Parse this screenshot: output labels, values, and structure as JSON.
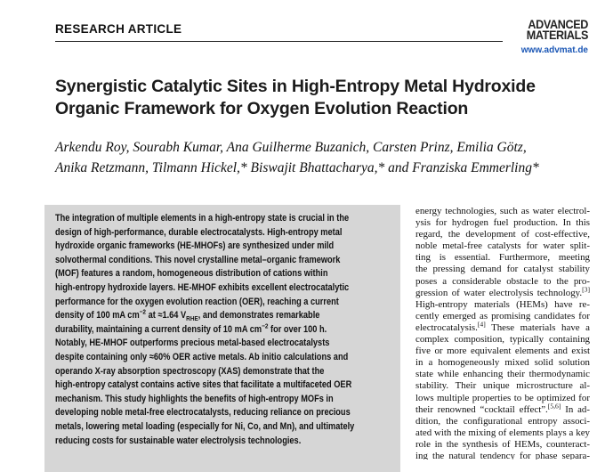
{
  "header": {
    "section": "RESEARCH ARTICLE",
    "journal_line1": "ADVANCED",
    "journal_line2": "MATERIALS",
    "url": "www.advmat.de"
  },
  "title": [
    "Synergistic Catalytic Sites in High-Entropy Metal Hydroxide",
    "Organic Framework for Oxygen Evolution Reaction"
  ],
  "authors": [
    "Arkendu Roy, Sourabh Kumar, Ana Guilherme Buzanich, Carsten Prinz, Emilia Götz,",
    "Anika Retzmann, Tilmann Hickel,* Biswajit Bhattacharya,* and Franziska Emmerling*"
  ],
  "abstract": {
    "lines": [
      [
        "The integration of multiple elements in a high-entropy state is crucial in the"
      ],
      [
        "design of high-performance, durable electrocatalysts. High-entropy metal"
      ],
      [
        "hydroxide organic frameworks (HE-MHOFs) are synthesized under mild"
      ],
      [
        "solvothermal conditions. This novel crystalline metal–organic framework"
      ],
      [
        "(MOF) features a random, homogeneous distribution of cations within"
      ],
      [
        "high-entropy hydroxide layers. HE-MHOF exhibits excellent electrocatalytic"
      ],
      [
        "performance for the oxygen evolution reaction (OER), reaching a current"
      ],
      [
        "density of 100 mA cm",
        {
          "sup": "−2"
        },
        " at ≈1.64 V",
        {
          "sub": "RHE"
        },
        ", and demonstrates remarkable"
      ],
      [
        "durability, maintaining a current density of 10 mA cm",
        {
          "sup": "−2"
        },
        " for over 100 h."
      ],
      [
        "Notably, HE-MHOF outperforms precious metal-based electrocatalysts"
      ],
      [
        "despite containing only ≈60% OER active metals. Ab initio calculations and"
      ],
      [
        "operando X-ray absorption spectroscopy (XAS) demonstrate that the"
      ],
      [
        "high-entropy catalyst contains active sites that facilitate a multifaceted OER"
      ],
      [
        "mechanism. This study highlights the benefits of high-entropy MOFs in"
      ],
      [
        "developing noble metal-free electrocatalysts, reducing reliance on precious"
      ],
      [
        "metals, lowering metal loading (especially for Ni, Co, and Mn), and ultimately"
      ],
      [
        "reducing costs for sustainable water electrolysis technologies."
      ]
    ]
  },
  "body": {
    "lines": [
      [
        "energy technologies, such as water electrol-"
      ],
      [
        "ysis for hydrogen fuel production. In this"
      ],
      [
        "regard, the development of cost-effective,"
      ],
      [
        "noble metal-free catalysts for water split-"
      ],
      [
        "ting is essential. Furthermore, meeting"
      ],
      [
        "the pressing demand for catalyst stability"
      ],
      [
        "poses a considerable obstacle to the pro-"
      ],
      [
        "gression of water electrolysis technology.",
        {
          "sup": "[3]"
        }
      ],
      [
        "High-entropy materials (HEMs) have re-"
      ],
      [
        "cently emerged as promising candidates for"
      ],
      [
        "electrocatalysis.",
        {
          "sup": "[4]"
        },
        " These materials have a"
      ],
      [
        "complex composition, typically containing"
      ],
      [
        "five or more equivalent elements and exist"
      ],
      [
        "in a homogeneously mixed solid solution"
      ],
      [
        "state while enhancing their thermodynamic"
      ],
      [
        "stability. Their unique microstructure al-"
      ],
      [
        "lows multiple properties to be optimized for"
      ],
      [
        "their renowned “cocktail effect”.",
        {
          "sup": "[5,6]"
        },
        " In ad-"
      ],
      [
        "dition, the configurational entropy associ-"
      ],
      [
        "ated with the mixing of elements plays a key"
      ],
      [
        "role in the synthesis of HEMs, counteract-"
      ],
      [
        "ing the natural tendency for phase separa-"
      ]
    ]
  }
}
